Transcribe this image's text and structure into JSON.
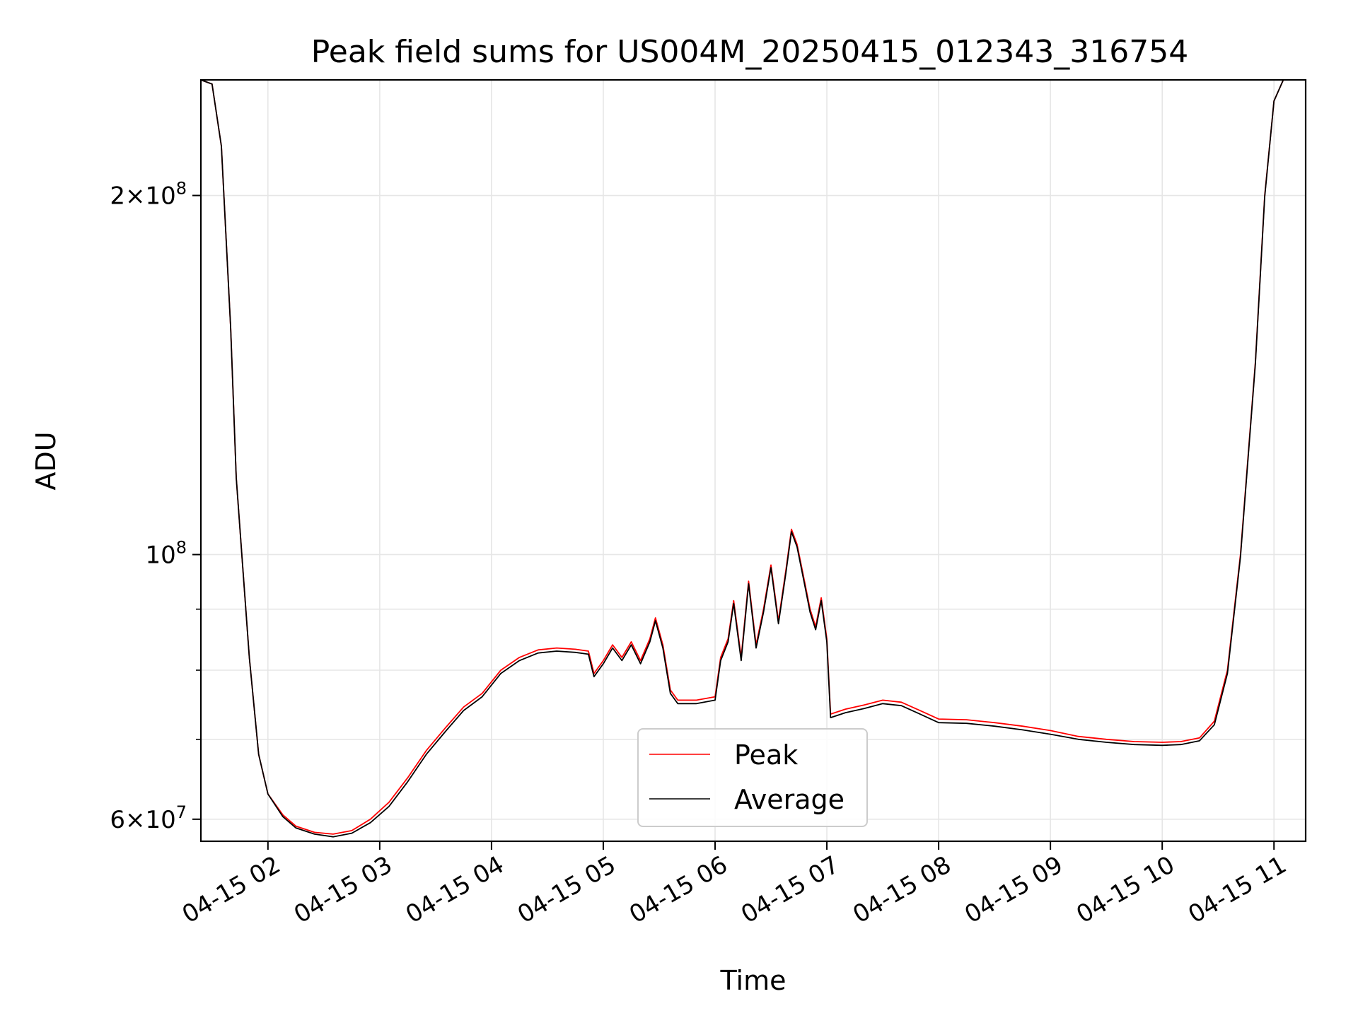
{
  "chart_data": {
    "type": "line",
    "title": "Peak field sums for US004M_20250415_012343_316754",
    "xlabel": "Time",
    "ylabel": "ADU",
    "yscale": "log",
    "grid": true,
    "legend_position": "lower-center",
    "xlim": [
      "2025-04-15 01:24",
      "2025-04-15 11:17"
    ],
    "ylim": [
      57500000,
      250000000
    ],
    "x_ticks": [
      "04-15 02",
      "04-15 03",
      "04-15 04",
      "04-15 05",
      "04-15 06",
      "04-15 07",
      "04-15 08",
      "04-15 09",
      "04-15 10",
      "04-15 11"
    ],
    "y_ticks": [
      {
        "value": 60000000,
        "label_mantissa": "6",
        "label_exp": "7",
        "has_mantissa": true
      },
      {
        "value": 100000000,
        "label_mantissa": "",
        "label_exp": "8",
        "has_mantissa": false
      },
      {
        "value": 200000000,
        "label_mantissa": "2",
        "label_exp": "8",
        "has_mantissa": true
      }
    ],
    "y_minor_ticks": [
      70000000,
      80000000,
      90000000
    ],
    "series": [
      {
        "name": "Peak",
        "color": "#ff0000",
        "points": [
          [
            "2025-04-15 01:24",
            250000000
          ],
          [
            "2025-04-15 01:30",
            248000000
          ],
          [
            "2025-04-15 01:35",
            220000000
          ],
          [
            "2025-04-15 01:40",
            155000000
          ],
          [
            "2025-04-15 01:43",
            116000000
          ],
          [
            "2025-04-15 01:46",
            100000000
          ],
          [
            "2025-04-15 01:50",
            82000000
          ],
          [
            "2025-04-15 01:55",
            68000000
          ],
          [
            "2025-04-15 02:00",
            63000000
          ],
          [
            "2025-04-15 02:08",
            60500000
          ],
          [
            "2025-04-15 02:15",
            59200000
          ],
          [
            "2025-04-15 02:25",
            58500000
          ],
          [
            "2025-04-15 02:35",
            58300000
          ],
          [
            "2025-04-15 02:45",
            58700000
          ],
          [
            "2025-04-15 02:55",
            60000000
          ],
          [
            "2025-04-15 03:05",
            62000000
          ],
          [
            "2025-04-15 03:15",
            65000000
          ],
          [
            "2025-04-15 03:25",
            68500000
          ],
          [
            "2025-04-15 03:35",
            71500000
          ],
          [
            "2025-04-15 03:45",
            74500000
          ],
          [
            "2025-04-15 03:55",
            76500000
          ],
          [
            "2025-04-15 04:05",
            80000000
          ],
          [
            "2025-04-15 04:15",
            82000000
          ],
          [
            "2025-04-15 04:25",
            83200000
          ],
          [
            "2025-04-15 04:35",
            83500000
          ],
          [
            "2025-04-15 04:45",
            83300000
          ],
          [
            "2025-04-15 04:52",
            83000000
          ],
          [
            "2025-04-15 04:55",
            79500000
          ],
          [
            "2025-04-15 05:00",
            81500000
          ],
          [
            "2025-04-15 05:05",
            84000000
          ],
          [
            "2025-04-15 05:10",
            82000000
          ],
          [
            "2025-04-15 05:15",
            84500000
          ],
          [
            "2025-04-15 05:20",
            81500000
          ],
          [
            "2025-04-15 05:25",
            85000000
          ],
          [
            "2025-04-15 05:28",
            88500000
          ],
          [
            "2025-04-15 05:32",
            84000000
          ],
          [
            "2025-04-15 05:36",
            77000000
          ],
          [
            "2025-04-15 05:40",
            75500000
          ],
          [
            "2025-04-15 05:50",
            75500000
          ],
          [
            "2025-04-15 06:00",
            76000000
          ],
          [
            "2025-04-15 06:03",
            82000000
          ],
          [
            "2025-04-15 06:07",
            85000000
          ],
          [
            "2025-04-15 06:10",
            91500000
          ],
          [
            "2025-04-15 06:14",
            82000000
          ],
          [
            "2025-04-15 06:18",
            95000000
          ],
          [
            "2025-04-15 06:22",
            84000000
          ],
          [
            "2025-04-15 06:26",
            90000000
          ],
          [
            "2025-04-15 06:30",
            98000000
          ],
          [
            "2025-04-15 06:34",
            88000000
          ],
          [
            "2025-04-15 06:38",
            97000000
          ],
          [
            "2025-04-15 06:41",
            105000000
          ],
          [
            "2025-04-15 06:44",
            102000000
          ],
          [
            "2025-04-15 06:48",
            95000000
          ],
          [
            "2025-04-15 06:51",
            90000000
          ],
          [
            "2025-04-15 06:54",
            87000000
          ],
          [
            "2025-04-15 06:57",
            92000000
          ],
          [
            "2025-04-15 07:00",
            85000000
          ],
          [
            "2025-04-15 07:02",
            73500000
          ],
          [
            "2025-04-15 07:10",
            74200000
          ],
          [
            "2025-04-15 07:20",
            74800000
          ],
          [
            "2025-04-15 07:30",
            75500000
          ],
          [
            "2025-04-15 07:40",
            75200000
          ],
          [
            "2025-04-15 07:50",
            74000000
          ],
          [
            "2025-04-15 08:00",
            72800000
          ],
          [
            "2025-04-15 08:15",
            72700000
          ],
          [
            "2025-04-15 08:30",
            72300000
          ],
          [
            "2025-04-15 08:45",
            71800000
          ],
          [
            "2025-04-15 09:00",
            71200000
          ],
          [
            "2025-04-15 09:15",
            70400000
          ],
          [
            "2025-04-15 09:30",
            70000000
          ],
          [
            "2025-04-15 09:45",
            69700000
          ],
          [
            "2025-04-15 10:00",
            69600000
          ],
          [
            "2025-04-15 10:10",
            69700000
          ],
          [
            "2025-04-15 10:20",
            70200000
          ],
          [
            "2025-04-15 10:28",
            72500000
          ],
          [
            "2025-04-15 10:35",
            80000000
          ],
          [
            "2025-04-15 10:42",
            100000000
          ],
          [
            "2025-04-15 10:50",
            145000000
          ],
          [
            "2025-04-15 10:55",
            200000000
          ],
          [
            "2025-04-15 11:00",
            240000000
          ],
          [
            "2025-04-15 11:05",
            250000000
          ],
          [
            "2025-04-15 11:17",
            250000000
          ]
        ]
      },
      {
        "name": "Average",
        "color": "#000000",
        "points": [
          [
            "2025-04-15 01:24",
            250000000
          ],
          [
            "2025-04-15 01:30",
            248000000
          ],
          [
            "2025-04-15 01:35",
            220000000
          ],
          [
            "2025-04-15 01:40",
            155000000
          ],
          [
            "2025-04-15 01:43",
            116000000
          ],
          [
            "2025-04-15 01:46",
            100000000
          ],
          [
            "2025-04-15 01:50",
            82000000
          ],
          [
            "2025-04-15 01:55",
            68000000
          ],
          [
            "2025-04-15 02:00",
            63000000
          ],
          [
            "2025-04-15 02:08",
            60300000
          ],
          [
            "2025-04-15 02:15",
            59000000
          ],
          [
            "2025-04-15 02:25",
            58300000
          ],
          [
            "2025-04-15 02:35",
            58000000
          ],
          [
            "2025-04-15 02:45",
            58400000
          ],
          [
            "2025-04-15 02:55",
            59600000
          ],
          [
            "2025-04-15 03:05",
            61500000
          ],
          [
            "2025-04-15 03:15",
            64500000
          ],
          [
            "2025-04-15 03:25",
            68000000
          ],
          [
            "2025-04-15 03:35",
            71000000
          ],
          [
            "2025-04-15 03:45",
            74000000
          ],
          [
            "2025-04-15 03:55",
            76000000
          ],
          [
            "2025-04-15 04:05",
            79500000
          ],
          [
            "2025-04-15 04:15",
            81500000
          ],
          [
            "2025-04-15 04:25",
            82700000
          ],
          [
            "2025-04-15 04:35",
            83000000
          ],
          [
            "2025-04-15 04:45",
            82800000
          ],
          [
            "2025-04-15 04:52",
            82500000
          ],
          [
            "2025-04-15 04:55",
            79000000
          ],
          [
            "2025-04-15 05:00",
            81000000
          ],
          [
            "2025-04-15 05:05",
            83500000
          ],
          [
            "2025-04-15 05:10",
            81500000
          ],
          [
            "2025-04-15 05:15",
            84000000
          ],
          [
            "2025-04-15 05:20",
            81000000
          ],
          [
            "2025-04-15 05:25",
            84500000
          ],
          [
            "2025-04-15 05:28",
            88000000
          ],
          [
            "2025-04-15 05:32",
            83500000
          ],
          [
            "2025-04-15 05:36",
            76500000
          ],
          [
            "2025-04-15 05:40",
            75000000
          ],
          [
            "2025-04-15 05:50",
            75000000
          ],
          [
            "2025-04-15 06:00",
            75500000
          ],
          [
            "2025-04-15 06:03",
            81500000
          ],
          [
            "2025-04-15 06:07",
            84500000
          ],
          [
            "2025-04-15 06:10",
            91000000
          ],
          [
            "2025-04-15 06:14",
            81500000
          ],
          [
            "2025-04-15 06:18",
            94500000
          ],
          [
            "2025-04-15 06:22",
            83500000
          ],
          [
            "2025-04-15 06:26",
            89500000
          ],
          [
            "2025-04-15 06:30",
            97500000
          ],
          [
            "2025-04-15 06:34",
            87500000
          ],
          [
            "2025-04-15 06:38",
            96500000
          ],
          [
            "2025-04-15 06:41",
            104500000
          ],
          [
            "2025-04-15 06:44",
            101500000
          ],
          [
            "2025-04-15 06:48",
            94500000
          ],
          [
            "2025-04-15 06:51",
            89500000
          ],
          [
            "2025-04-15 06:54",
            86500000
          ],
          [
            "2025-04-15 06:57",
            91500000
          ],
          [
            "2025-04-15 07:00",
            84500000
          ],
          [
            "2025-04-15 07:02",
            73000000
          ],
          [
            "2025-04-15 07:10",
            73700000
          ],
          [
            "2025-04-15 07:20",
            74300000
          ],
          [
            "2025-04-15 07:30",
            75000000
          ],
          [
            "2025-04-15 07:40",
            74700000
          ],
          [
            "2025-04-15 07:50",
            73500000
          ],
          [
            "2025-04-15 08:00",
            72300000
          ],
          [
            "2025-04-15 08:15",
            72200000
          ],
          [
            "2025-04-15 08:30",
            71800000
          ],
          [
            "2025-04-15 08:45",
            71300000
          ],
          [
            "2025-04-15 09:00",
            70700000
          ],
          [
            "2025-04-15 09:15",
            70000000
          ],
          [
            "2025-04-15 09:30",
            69600000
          ],
          [
            "2025-04-15 09:45",
            69300000
          ],
          [
            "2025-04-15 10:00",
            69200000
          ],
          [
            "2025-04-15 10:10",
            69300000
          ],
          [
            "2025-04-15 10:20",
            69800000
          ],
          [
            "2025-04-15 10:28",
            72000000
          ],
          [
            "2025-04-15 10:35",
            79500000
          ],
          [
            "2025-04-15 10:42",
            99500000
          ],
          [
            "2025-04-15 10:50",
            144500000
          ],
          [
            "2025-04-15 10:55",
            199500000
          ],
          [
            "2025-04-15 11:00",
            240000000
          ],
          [
            "2025-04-15 11:05",
            250000000
          ],
          [
            "2025-04-15 11:17",
            250000000
          ]
        ]
      }
    ]
  }
}
